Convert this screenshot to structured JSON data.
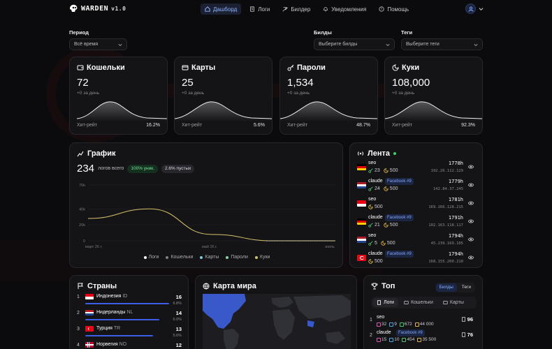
{
  "brand": {
    "name": "WARDEN",
    "version": "v1.0"
  },
  "nav": [
    {
      "label": "Дашборд",
      "icon": "home-icon",
      "active": true
    },
    {
      "label": "Логи",
      "icon": "logs-icon"
    },
    {
      "label": "Билдер",
      "icon": "builder-icon"
    },
    {
      "label": "Уведомления",
      "icon": "bell-icon"
    },
    {
      "label": "Помощь",
      "icon": "help-icon"
    }
  ],
  "filters": {
    "period": {
      "label": "Период",
      "value": "Всё время"
    },
    "builds": {
      "label": "Билды",
      "placeholder": "Выберите билды"
    },
    "tags": {
      "label": "Теги",
      "placeholder": "Выберите теги"
    }
  },
  "stats": [
    {
      "title": "Кошельки",
      "icon": "wallet-icon",
      "value": "72",
      "delta": "+0 за день",
      "hit_label": "Хит-рейт",
      "hit": "16.2%"
    },
    {
      "title": "Карты",
      "icon": "card-icon",
      "value": "25",
      "delta": "+0 за день",
      "hit_label": "Хит-рейт",
      "hit": "5.6%"
    },
    {
      "title": "Пароли",
      "icon": "key-icon",
      "value": "1,534",
      "delta": "+0 за день",
      "hit_label": "Хит-рейт",
      "hit": "48.7%"
    },
    {
      "title": "Куки",
      "icon": "cookie-icon",
      "value": "108,000",
      "delta": "+0 за день",
      "hit_label": "Хит-рейт",
      "hit": "92.3%"
    }
  ],
  "graph": {
    "title": "График",
    "total": "234",
    "total_label": "логов всего",
    "unique": "100% уник.",
    "empty": "2.6% пустых",
    "legend": [
      "Логи",
      "Кошельки",
      "Карты",
      "Пароли",
      "Куки"
    ],
    "legend_colors": [
      "#ffffff",
      "#7f7f87",
      "#7fc7e6",
      "#8bd6a3",
      "#d6c16b"
    ]
  },
  "chart_data": {
    "type": "line",
    "x_ticks": [
      "март 26 г.",
      "май 26 г.",
      "июль"
    ],
    "y_ticks": [
      "0",
      "20k",
      "40k",
      "70k"
    ],
    "ylim": [
      0,
      70000
    ],
    "series": [
      {
        "name": "Куки",
        "x": [
          "март 26 г.",
          "апр 26 г.",
          "май 26 г.",
          "июнь 26 г.",
          "июль"
        ],
        "values": [
          28000,
          40000,
          8000,
          0,
          0
        ]
      },
      {
        "name": "Логи",
        "x": [
          "март 26 г.",
          "апр 26 г.",
          "май 26 г.",
          "июнь 26 г.",
          "июль"
        ],
        "values": [
          0,
          0,
          0,
          0,
          0
        ]
      }
    ],
    "grid": true,
    "legend_position": "bottom"
  },
  "feed": {
    "title": "Лента",
    "items": [
      {
        "name": "seo",
        "tag": "",
        "flag": "de",
        "keys": "23",
        "cookies": "500",
        "hours": "1778h",
        "ip": "192.26.112.129"
      },
      {
        "name": "claude",
        "tag": "Facebook #9",
        "flag": "nl",
        "keys": "24",
        "cookies": "500",
        "hours": "1779h",
        "ip": "142.84.37.245"
      },
      {
        "name": "seo",
        "tag": "",
        "flag": "id",
        "keys": "",
        "cookies": "500",
        "hours": "1781h",
        "ip": "169.166.128.215"
      },
      {
        "name": "claude",
        "tag": "Facebook #9",
        "flag": "de",
        "keys": "21",
        "cookies": "500",
        "hours": "1791h",
        "ip": "102.163.118.117"
      },
      {
        "name": "seo",
        "tag": "",
        "flag": "nl",
        "keys": "5",
        "cookies": "500",
        "hours": "1794h",
        "ip": "45.239.169.105"
      },
      {
        "name": "claude",
        "tag": "Facebook #9",
        "flag": "tr",
        "keys": "",
        "cookies": "500",
        "hours": "1794h",
        "ip": "168.155.200.210"
      }
    ]
  },
  "countries": {
    "title": "Страны",
    "items": [
      {
        "rank": "1",
        "name": "Индонезия",
        "code": "ID",
        "count": "16",
        "pct": "6.8%",
        "flag": "id",
        "fill": 1.0
      },
      {
        "rank": "2",
        "name": "Нидерланды",
        "code": "NL",
        "count": "14",
        "pct": "6.0%",
        "flag": "nl",
        "fill": 0.88
      },
      {
        "rank": "3",
        "name": "Турция",
        "code": "TR",
        "count": "13",
        "pct": "5.6%",
        "flag": "tr",
        "fill": 0.81
      },
      {
        "rank": "4",
        "name": "Норвегия",
        "code": "NO",
        "count": "12",
        "pct": "",
        "flag": "no",
        "fill": 0.75
      }
    ]
  },
  "map": {
    "title": "Карта мира"
  },
  "top": {
    "title": "Топ",
    "toggle": [
      "Билды",
      "Теги"
    ],
    "tabs": [
      "Логи",
      "Кошельки",
      "Карты"
    ],
    "rows": [
      {
        "rank": "1",
        "name": "seo",
        "tag": "",
        "a": "32",
        "b": "9",
        "c": "672",
        "d": "44 000",
        "score": "96"
      },
      {
        "rank": "2",
        "name": "claude",
        "tag": "Facebook #9",
        "a": "15",
        "b": "10",
        "c": "454",
        "d": "35 500",
        "score": "76"
      }
    ]
  }
}
